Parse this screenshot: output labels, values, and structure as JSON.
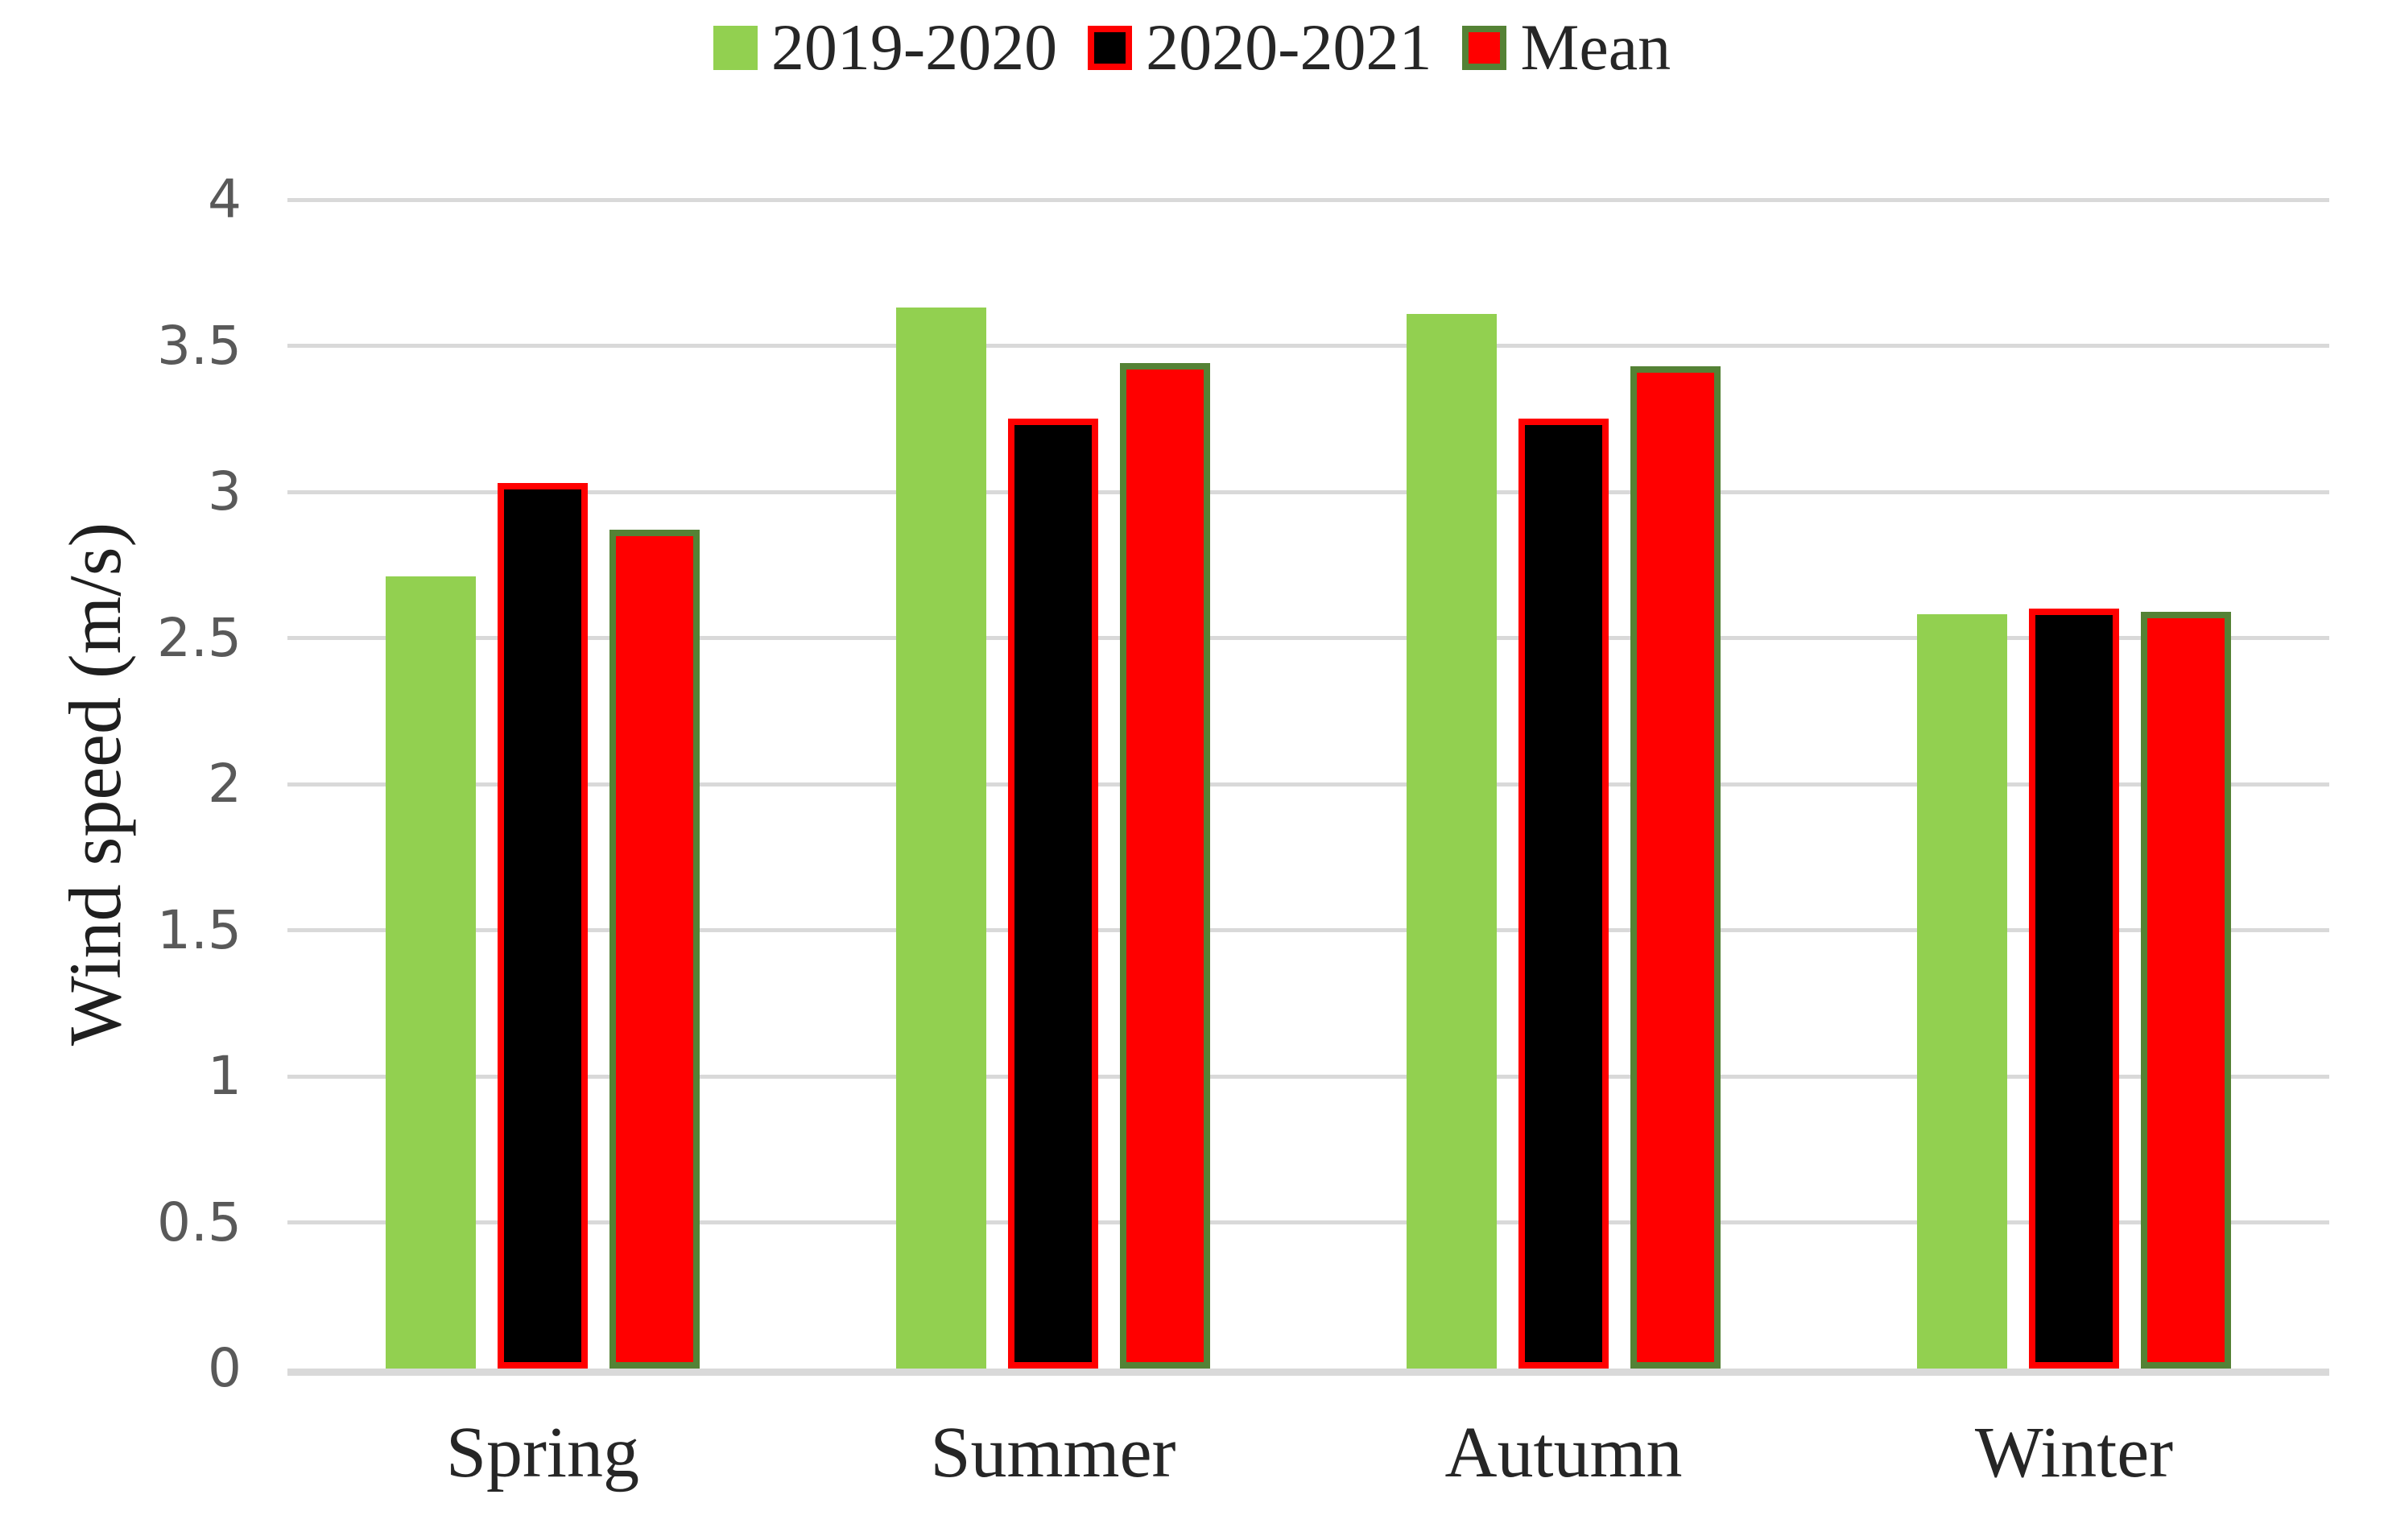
{
  "chart_data": {
    "type": "bar",
    "title": "",
    "xlabel": "",
    "ylabel": "Wind speed (m/s)",
    "ylim": [
      0,
      4
    ],
    "ytick_step": 0.5,
    "yticks": [
      "0",
      "0.5",
      "1",
      "1.5",
      "2",
      "2.5",
      "3",
      "3.5",
      "4"
    ],
    "grid": true,
    "legend_position": "top",
    "categories": [
      "Spring",
      "Summer",
      "Autumn",
      "Winter"
    ],
    "series": [
      {
        "name": "2019-2020",
        "values": [
          2.71,
          3.63,
          3.61,
          2.58
        ],
        "fill": "#92D050",
        "border": null
      },
      {
        "name": "2020-2021",
        "values": [
          3.03,
          3.25,
          3.25,
          2.6
        ],
        "fill": "#000000",
        "border": "#FF0000"
      },
      {
        "name": "Mean",
        "values": [
          2.87,
          3.44,
          3.43,
          2.59
        ],
        "fill": "#FF0000",
        "border": "#548235"
      }
    ],
    "colors": {
      "gridline": "#D9D9D9",
      "baseline": "#D9D9D9",
      "axis_tick_text": "#595959",
      "category_text": "#262626",
      "legend_text": "#262626",
      "ylabel_text": "#1f1f1f"
    }
  }
}
